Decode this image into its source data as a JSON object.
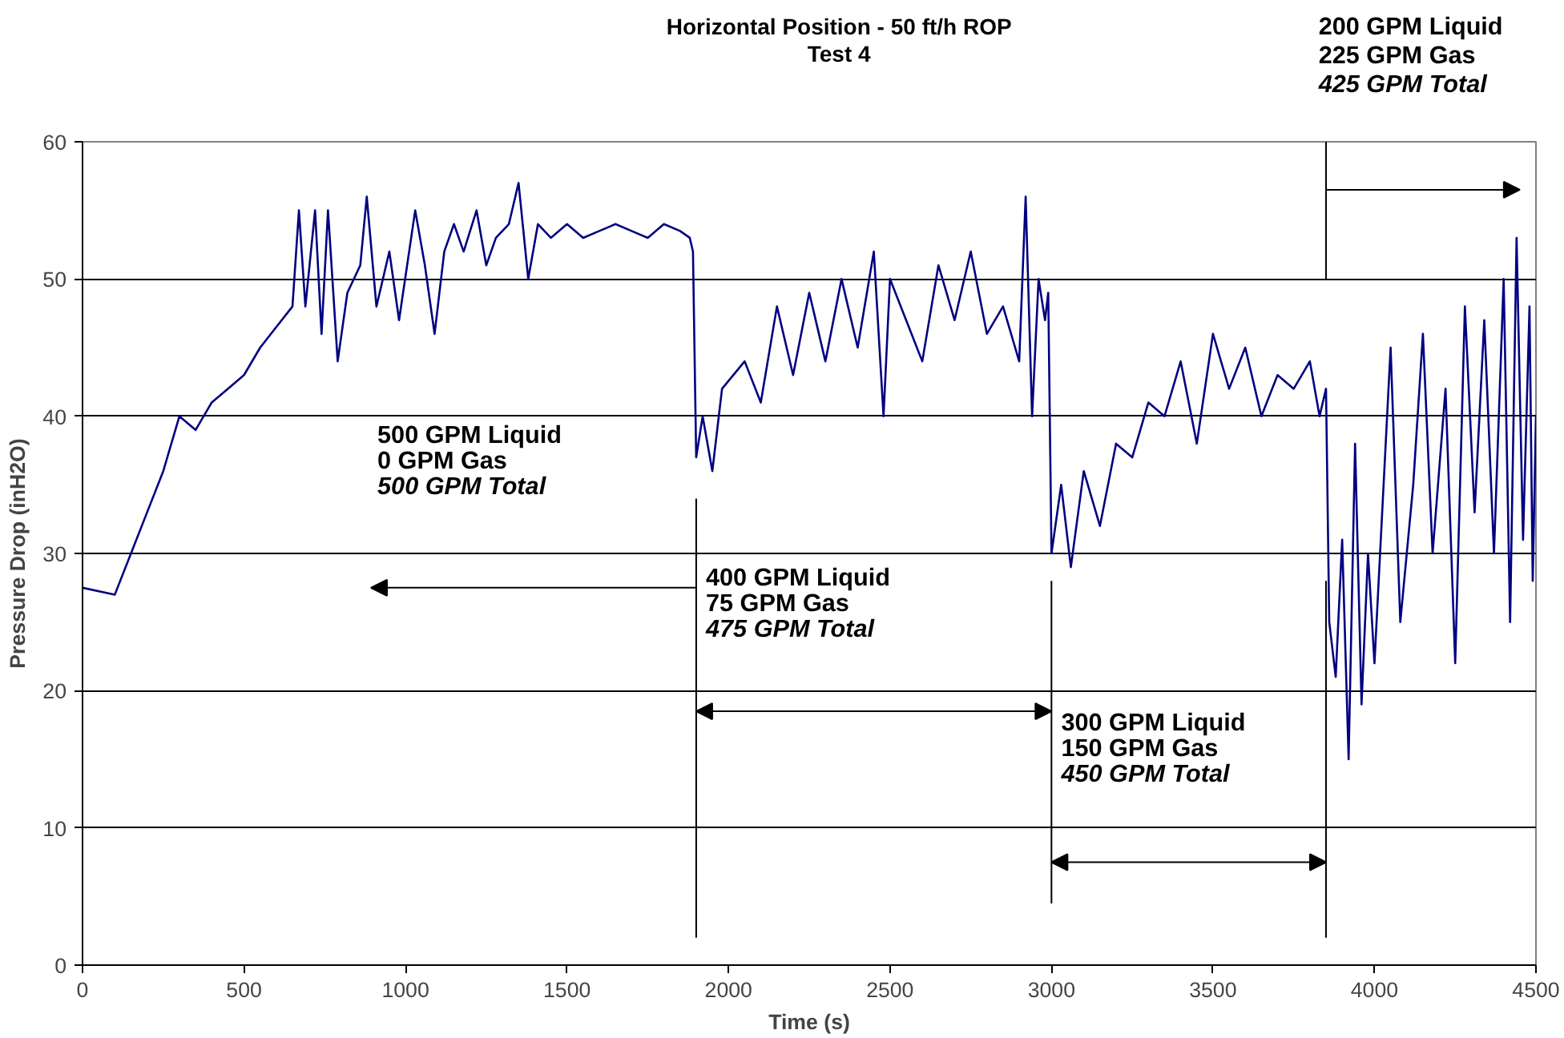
{
  "chart_data": {
    "type": "line",
    "title": "Horizontal Position - 50 ft/h ROP",
    "subtitle": "Test 4",
    "xlabel": "Time (s)",
    "ylabel": "Pressure Drop (inH2O)",
    "x": [
      0,
      100,
      150,
      200,
      250,
      300,
      350,
      400,
      450,
      500,
      550,
      600,
      650,
      670,
      690,
      720,
      740,
      760,
      790,
      820,
      860,
      880,
      910,
      950,
      980,
      1030,
      1060,
      1090,
      1120,
      1150,
      1180,
      1220,
      1250,
      1280,
      1320,
      1350,
      1380,
      1410,
      1450,
      1500,
      1550,
      1600,
      1650,
      1700,
      1750,
      1800,
      1850,
      1880,
      1890,
      1900,
      1920,
      1950,
      1980,
      2050,
      2100,
      2150,
      2200,
      2250,
      2300,
      2350,
      2400,
      2450,
      2480,
      2500,
      2550,
      2600,
      2650,
      2700,
      2750,
      2800,
      2850,
      2900,
      2920,
      2940,
      2960,
      2980,
      2990,
      3000,
      3030,
      3060,
      3100,
      3150,
      3200,
      3250,
      3300,
      3350,
      3400,
      3450,
      3500,
      3550,
      3600,
      3650,
      3700,
      3750,
      3800,
      3830,
      3850,
      3860,
      3880,
      3900,
      3920,
      3940,
      3960,
      3980,
      4000,
      4050,
      4080,
      4120,
      4150,
      4180,
      4220,
      4250,
      4280,
      4310,
      4340,
      4370,
      4400,
      4420,
      4440,
      4460,
      4480,
      4490,
      4500
    ],
    "series": [
      {
        "color": "#000080",
        "values": [
          27.5,
          27,
          30,
          33,
          36,
          40,
          39,
          41,
          42,
          43,
          45,
          46.5,
          48,
          55,
          48,
          55,
          46,
          55,
          44,
          49,
          51,
          56,
          48,
          52,
          47,
          55,
          51,
          46,
          52,
          54,
          52,
          55,
          51,
          53,
          54,
          57,
          50,
          54,
          53,
          54,
          53,
          53.5,
          54,
          53.5,
          53,
          54,
          53.5,
          53,
          52,
          37,
          40,
          36,
          42,
          44,
          41,
          48,
          43,
          49,
          44,
          50,
          45,
          52,
          40,
          50,
          47,
          44,
          51,
          47,
          52,
          46,
          48,
          44,
          56,
          40,
          50,
          47,
          49,
          30,
          35,
          29,
          36,
          32,
          38,
          37,
          41,
          40,
          44,
          38,
          46,
          42,
          45,
          40,
          43,
          42,
          44,
          40,
          42,
          25,
          21,
          31,
          15,
          38,
          19,
          30,
          22,
          45,
          25,
          35,
          46,
          30,
          42,
          22,
          48,
          33,
          47,
          30,
          50,
          25,
          53,
          31,
          48,
          28,
          40
        ]
      }
    ],
    "xlim": [
      0,
      4500
    ],
    "ylim": [
      0,
      60
    ],
    "xticks": [
      0,
      500,
      1000,
      1500,
      2000,
      2500,
      3000,
      3500,
      4000,
      4500
    ],
    "yticks": [
      0,
      10,
      20,
      30,
      40,
      50,
      60
    ],
    "grid": "y",
    "ref_lines": [
      {
        "axis": "x",
        "value": 1900,
        "label": null
      },
      {
        "axis": "x",
        "value": 3000,
        "label": null
      },
      {
        "axis": "x",
        "value": 3850,
        "label": null
      }
    ],
    "annotations": [
      "500 GPM Liquid\n0 GPM Gas\n500 GPM Total",
      "400 GPM Liquid\n75 GPM Gas\n475 GPM Total",
      "300 GPM Liquid\n150 GPM Gas\n450 GPM Total",
      "200 GPM Liquid\n225 GPM Gas\n425 GPM Total"
    ]
  }
}
